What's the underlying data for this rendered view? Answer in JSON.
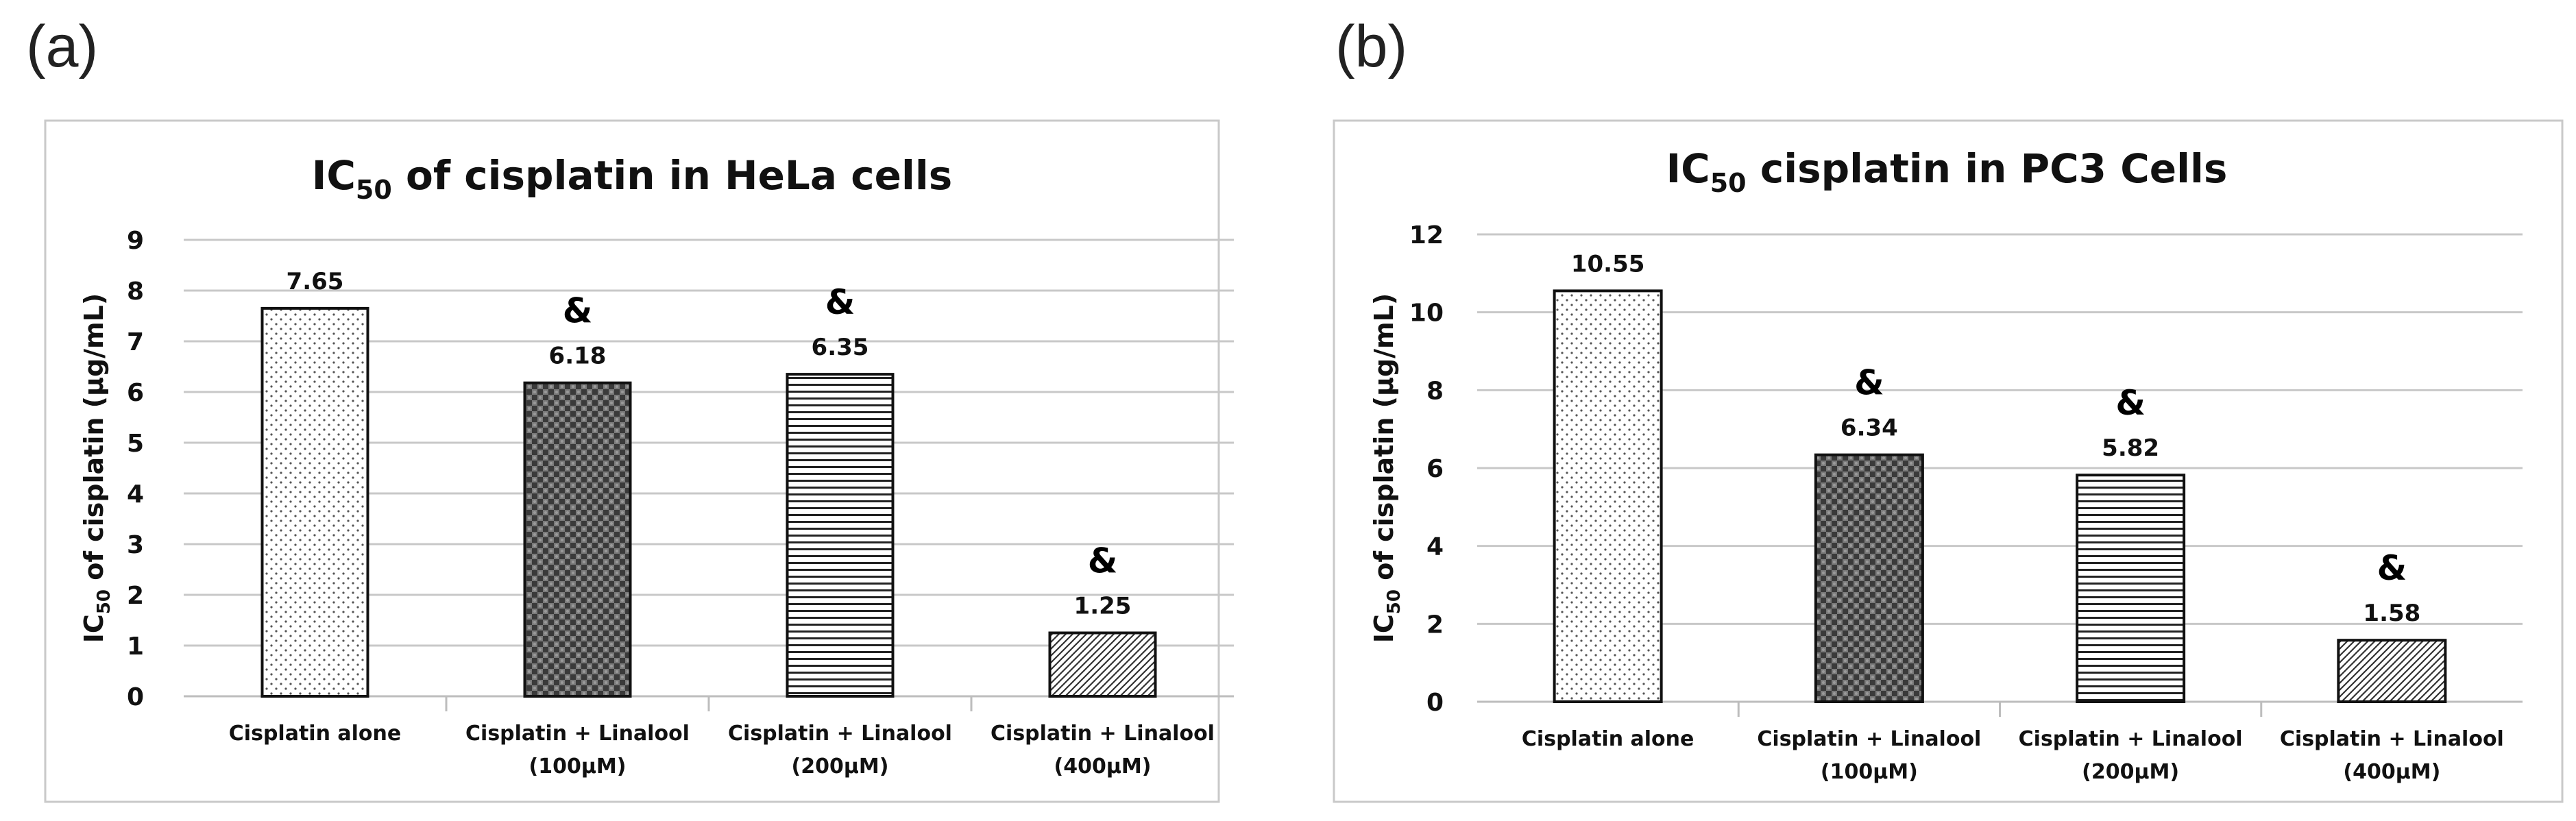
{
  "panels": [
    {
      "label": "(a)"
    },
    {
      "label": "(b)"
    }
  ],
  "colors": {
    "bar_outline": "#111111",
    "grid": "#c8c8c8",
    "frame": "#c9c9c9",
    "text": "#111111"
  },
  "chart_data": [
    {
      "type": "bar",
      "title": "IC",
      "title_subscript": "50",
      "title_rest": " of cisplatin in HeLa cells",
      "ylabel": "IC",
      "ylabel_subscript": "50",
      "ylabel_rest": " of cisplatin  (µg/mL)",
      "xlabel": "",
      "ylim": [
        0,
        9
      ],
      "yticks": [
        "0",
        "1",
        "2",
        "3",
        "4",
        "5",
        "6",
        "7",
        "8",
        "9"
      ],
      "ytick_values": [
        0,
        1,
        2,
        3,
        4,
        5,
        6,
        7,
        8,
        9
      ],
      "categories": [
        [
          "Cisplatin alone"
        ],
        [
          "Cisplatin + Linalool",
          "(100µM)"
        ],
        [
          "Cisplatin + Linalool",
          "(200µM)"
        ],
        [
          "Cisplatin + Linalool",
          "(400µM)"
        ]
      ],
      "values": [
        7.65,
        6.18,
        6.35,
        1.25
      ],
      "data_labels": [
        "7.65",
        "6.18",
        "6.35",
        "1.25"
      ],
      "significance": [
        "",
        "&",
        "&",
        "&"
      ],
      "patterns": [
        "dots",
        "checker",
        "hlines",
        "diag"
      ],
      "grid": true
    },
    {
      "type": "bar",
      "title": "IC",
      "title_subscript": "50",
      "title_rest": " cisplatin in PC3 Cells",
      "ylabel": "IC",
      "ylabel_subscript": "50",
      "ylabel_rest": " of cisplatin  (µg/mL)",
      "xlabel": "",
      "ylim": [
        0,
        12
      ],
      "yticks": [
        "0",
        "2",
        "4",
        "6",
        "8",
        "10",
        "12"
      ],
      "ytick_values": [
        0,
        2,
        4,
        6,
        8,
        10,
        12
      ],
      "categories": [
        [
          "Cisplatin alone"
        ],
        [
          "Cisplatin + Linalool",
          "(100µM)"
        ],
        [
          "Cisplatin + Linalool",
          "(200µM)"
        ],
        [
          "Cisplatin + Linalool",
          "(400µM)"
        ]
      ],
      "values": [
        10.55,
        6.34,
        5.82,
        1.58
      ],
      "data_labels": [
        "10.55",
        "6.34",
        "5.82",
        "1.58"
      ],
      "significance": [
        "",
        "&",
        "&",
        "&"
      ],
      "patterns": [
        "dots",
        "checker",
        "hlines",
        "diag"
      ],
      "grid": true
    }
  ]
}
